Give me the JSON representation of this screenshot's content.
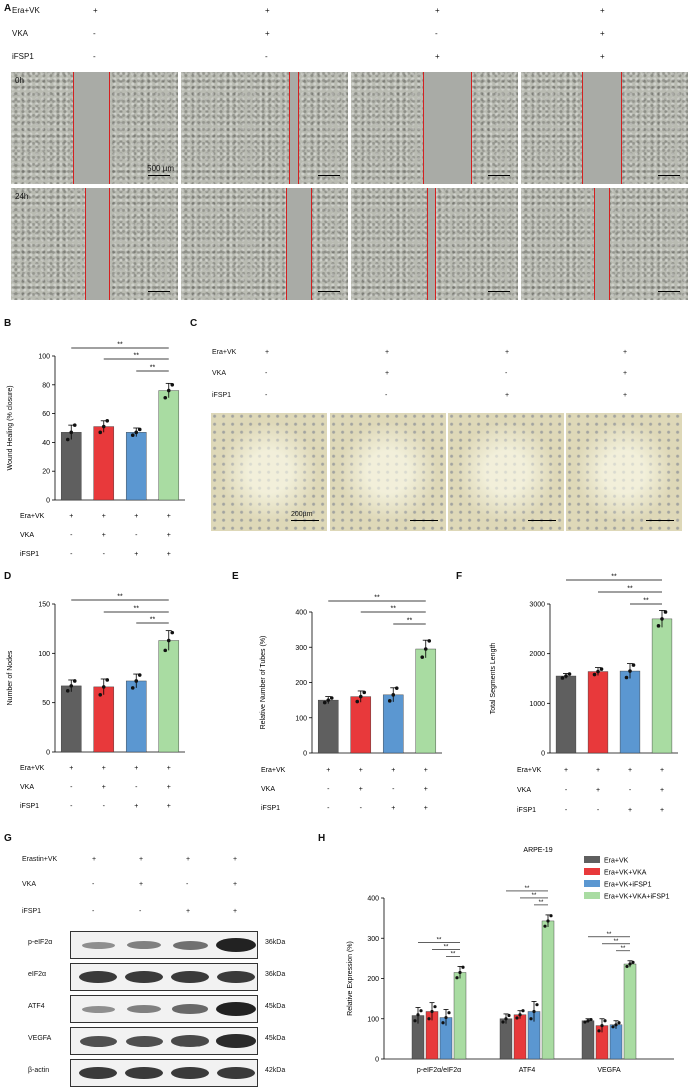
{
  "panelA": {
    "label": "A",
    "rows": [
      {
        "name": "Era+VK",
        "signs": [
          "+",
          "+",
          "+",
          "+"
        ]
      },
      {
        "name": "VKA",
        "signs": [
          "-",
          "+",
          "-",
          "+"
        ]
      },
      {
        "name": "iFSP1",
        "signs": [
          "-",
          "-",
          "+",
          "+"
        ]
      }
    ],
    "time_labels": [
      "0h",
      "24h"
    ],
    "scale_label": "500 µm"
  },
  "panelB": {
    "label": "B"
  },
  "panelC": {
    "label": "C",
    "rows": [
      {
        "name": "Era+VK",
        "signs": [
          "+",
          "+",
          "+",
          "+"
        ]
      },
      {
        "name": "VKA",
        "signs": [
          "-",
          "+",
          "-",
          "+"
        ]
      },
      {
        "name": "iFSP1",
        "signs": [
          "-",
          "-",
          "+",
          "+"
        ]
      }
    ],
    "scale_label": "200µm"
  },
  "panelD": {
    "label": "D"
  },
  "panelE": {
    "label": "E"
  },
  "panelF": {
    "label": "F"
  },
  "panelG": {
    "label": "G",
    "rows": [
      {
        "name": "Erastin+VK",
        "signs": [
          "+",
          "+",
          "+",
          "+"
        ]
      },
      {
        "name": "VKA",
        "signs": [
          "-",
          "+",
          "-",
          "+"
        ]
      },
      {
        "name": "iFSP1",
        "signs": [
          "-",
          "-",
          "+",
          "+"
        ]
      }
    ],
    "blots": [
      {
        "name": "p-eIF2α",
        "kda": "36kDa",
        "intensity": [
          0.3,
          0.4,
          0.5,
          1.0
        ]
      },
      {
        "name": "eIF2α",
        "kda": "36kDa",
        "intensity": [
          0.85,
          0.85,
          0.85,
          0.85
        ]
      },
      {
        "name": "ATF4",
        "kda": "45kDa",
        "intensity": [
          0.3,
          0.4,
          0.55,
          1.0
        ]
      },
      {
        "name": "VEGFA",
        "kda": "45kDa",
        "intensity": [
          0.7,
          0.7,
          0.75,
          0.95
        ]
      },
      {
        "name": "β-actin",
        "kda": "42kDa",
        "intensity": [
          0.85,
          0.85,
          0.85,
          0.85
        ]
      }
    ]
  },
  "panelH": {
    "label": "H"
  },
  "colors": {
    "gray": "#5f5f5f",
    "red": "#e8393b",
    "blue": "#5b97d1",
    "green": "#a9dca2"
  },
  "chart_data": [
    {
      "id": "B",
      "type": "bar",
      "ylabel": "Wound Healing (% closure)",
      "ylim": [
        0,
        100
      ],
      "yticks": [
        0,
        20,
        40,
        60,
        80,
        100
      ],
      "values": [
        47,
        51,
        47,
        76
      ],
      "errors": [
        5,
        4,
        3,
        5
      ],
      "points": [
        [
          42,
          47,
          52
        ],
        [
          47,
          51,
          55
        ],
        [
          45,
          47,
          49
        ],
        [
          71,
          76,
          80
        ]
      ],
      "conditions": [
        {
          "name": "Era+VK",
          "signs": [
            "+",
            "+",
            "+",
            "+"
          ]
        },
        {
          "name": "VKA",
          "signs": [
            "-",
            "+",
            "-",
            "+"
          ]
        },
        {
          "name": "iFSP1",
          "signs": [
            "-",
            "-",
            "+",
            "+"
          ]
        }
      ],
      "sig": [
        "**",
        "**",
        "**"
      ]
    },
    {
      "id": "D",
      "type": "bar",
      "ylabel": "Number of Nodes",
      "ylim": [
        0,
        150
      ],
      "yticks": [
        0,
        50,
        100,
        150
      ],
      "values": [
        67,
        66,
        72,
        113
      ],
      "errors": [
        6,
        8,
        7,
        10
      ],
      "points": [
        [
          62,
          67,
          72
        ],
        [
          58,
          66,
          73
        ],
        [
          65,
          72,
          78
        ],
        [
          103,
          113,
          121
        ]
      ],
      "conditions": [
        {
          "name": "Era+VK",
          "signs": [
            "+",
            "+",
            "+",
            "+"
          ]
        },
        {
          "name": "VKA",
          "signs": [
            "-",
            "+",
            "-",
            "+"
          ]
        },
        {
          "name": "iFSP1",
          "signs": [
            "-",
            "-",
            "+",
            "+"
          ]
        }
      ],
      "sig": [
        "**",
        "**",
        "**"
      ]
    },
    {
      "id": "E",
      "type": "bar",
      "ylabel": "Relative Number of Tubes (%)",
      "ylim": [
        0,
        400
      ],
      "yticks": [
        0,
        100,
        200,
        300,
        400
      ],
      "values": [
        150,
        160,
        165,
        295
      ],
      "errors": [
        10,
        16,
        20,
        25
      ],
      "points": [
        [
          143,
          150,
          156
        ],
        [
          146,
          160,
          172
        ],
        [
          148,
          165,
          184
        ],
        [
          272,
          295,
          318
        ]
      ],
      "conditions": [
        {
          "name": "Era+VK",
          "signs": [
            "+",
            "+",
            "+",
            "+"
          ]
        },
        {
          "name": "VKA",
          "signs": [
            "-",
            "+",
            "-",
            "+"
          ]
        },
        {
          "name": "iFSP1",
          "signs": [
            "-",
            "-",
            "+",
            "+"
          ]
        }
      ],
      "sig": [
        "**",
        "**",
        "**"
      ]
    },
    {
      "id": "F",
      "type": "bar",
      "ylabel": "Total Segments Length",
      "ylim": [
        0,
        3000
      ],
      "yticks": [
        0,
        1000,
        2000,
        3000
      ],
      "values": [
        1550,
        1640,
        1650,
        2700
      ],
      "errors": [
        50,
        80,
        150,
        170
      ],
      "points": [
        [
          1510,
          1550,
          1590
        ],
        [
          1580,
          1640,
          1690
        ],
        [
          1520,
          1650,
          1770
        ],
        [
          2560,
          2700,
          2840
        ]
      ],
      "conditions": [
        {
          "name": "Era+VK",
          "signs": [
            "+",
            "+",
            "+",
            "+"
          ]
        },
        {
          "name": "VKA",
          "signs": [
            "-",
            "+",
            "-",
            "+"
          ]
        },
        {
          "name": "iFSP1",
          "signs": [
            "-",
            "-",
            "+",
            "+"
          ]
        }
      ],
      "sig": [
        "**",
        "**",
        "**"
      ]
    },
    {
      "id": "H",
      "type": "bar",
      "title": "ARPE-19",
      "ylabel": "Relative Expression (%)",
      "ylim": [
        0,
        400
      ],
      "yticks": [
        0,
        100,
        200,
        300,
        400
      ],
      "categories": [
        "p-eIF2α/eIF2α",
        "ATF4",
        "VEGFA"
      ],
      "series": [
        {
          "name": "Era+VK",
          "values": [
            108,
            100,
            95
          ],
          "errors": [
            20,
            12,
            5
          ],
          "points": [
            [
              95,
              110,
              120
            ],
            [
              92,
              100,
              108
            ],
            [
              92,
              95,
              98
            ]
          ]
        },
        {
          "name": "Era+VK+VKA",
          "values": [
            118,
            110,
            83
          ],
          "errors": [
            22,
            10,
            17
          ],
          "points": [
            [
              100,
              118,
              130
            ],
            [
              102,
              110,
              120
            ],
            [
              70,
              83,
              95
            ]
          ]
        },
        {
          "name": "Era+VK+iFSP1",
          "values": [
            103,
            118,
            85
          ],
          "errors": [
            20,
            25,
            10
          ],
          "points": [
            [
              90,
              103,
              115
            ],
            [
              100,
              118,
              135
            ],
            [
              80,
              85,
              90
            ]
          ]
        },
        {
          "name": "Era+VK+VKA+iFSP1",
          "values": [
            215,
            343,
            236
          ],
          "errors": [
            15,
            15,
            8
          ],
          "points": [
            [
              202,
              215,
              228
            ],
            [
              330,
              343,
              356
            ],
            [
              230,
              236,
              240
            ]
          ]
        }
      ],
      "legend_position": "top-right",
      "sig": [
        "**",
        "**",
        "**"
      ]
    }
  ]
}
